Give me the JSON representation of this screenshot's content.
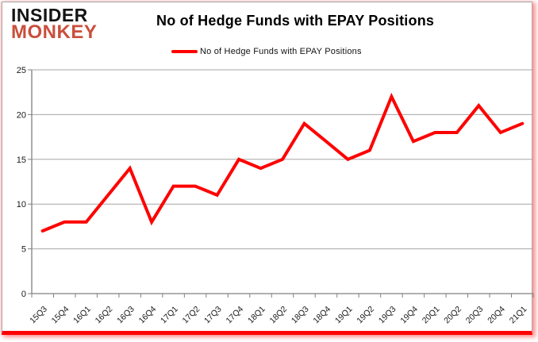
{
  "logo": {
    "line1": "INSIDER",
    "line2": "MONKEY"
  },
  "header": {
    "title": "No of Hedge Funds with EPAY Positions"
  },
  "legend": {
    "label": "No of Hedge Funds with EPAY Positions"
  },
  "colors": {
    "line": "#ff0000",
    "logo_red": "#c94f3c",
    "grid": "#a6a6a6",
    "axis": "#808080",
    "tick_text": "#1a1a1a",
    "bottom_border": "#fe0000"
  },
  "chart_data": {
    "type": "line",
    "title": "No of Hedge Funds with EPAY Positions",
    "xlabel": "",
    "ylabel": "",
    "categories": [
      "15Q3",
      "15Q4",
      "16Q1",
      "16Q2",
      "16Q3",
      "16Q4",
      "17Q1",
      "17Q2",
      "17Q3",
      "17Q4",
      "18Q1",
      "18Q2",
      "18Q3",
      "18Q4",
      "19Q1",
      "19Q2",
      "19Q3",
      "19Q4",
      "20Q1",
      "20Q2",
      "20Q3",
      "20Q4",
      "21Q1"
    ],
    "series": [
      {
        "name": "No of Hedge Funds with EPAY Positions",
        "values": [
          7,
          8,
          8,
          11,
          14,
          8,
          12,
          12,
          11,
          15,
          14,
          15,
          19,
          17,
          15,
          16,
          22,
          17,
          18,
          18,
          21,
          18,
          19
        ]
      }
    ],
    "ylim": [
      0,
      25
    ],
    "yticks": [
      0,
      5,
      10,
      15,
      20,
      25
    ],
    "grid": true,
    "legend_position": "top"
  }
}
